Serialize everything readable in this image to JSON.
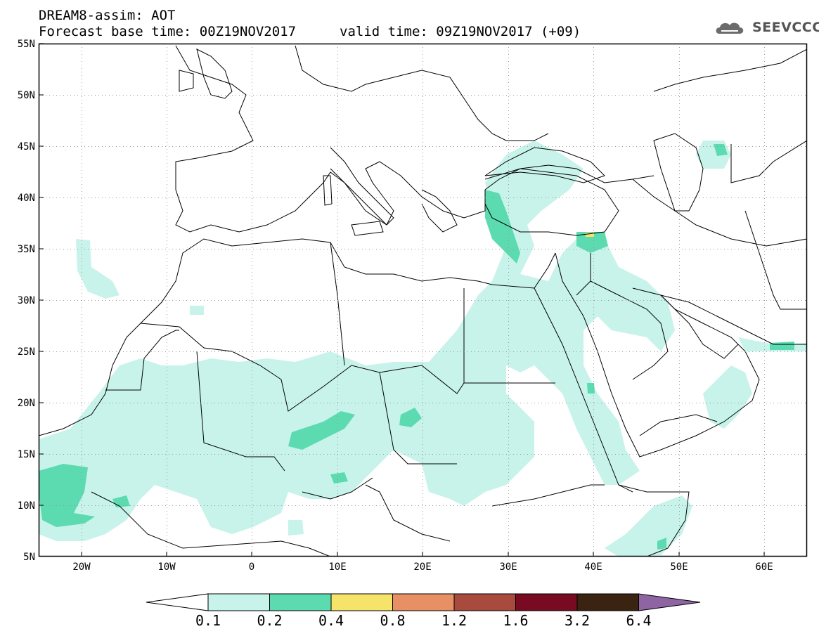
{
  "header": {
    "title": "DREAM8-assim: AOT",
    "base_time": "Forecast base time: 00Z19NOV2017",
    "valid_time": "valid time: 09Z19NOV2017 (+09)",
    "logo_text": "SEEVCCC"
  },
  "map": {
    "lat_labels": [
      "55N",
      "50N",
      "45N",
      "40N",
      "35N",
      "30N",
      "25N",
      "20N",
      "15N",
      "10N",
      "5N"
    ],
    "lon_labels": [
      "20W",
      "10W",
      "0",
      "10E",
      "20E",
      "30E",
      "40E",
      "50E",
      "60E"
    ],
    "lat_range": [
      5,
      55
    ],
    "lon_range": [
      -25,
      65
    ],
    "grid": "dotted"
  },
  "colorbar": {
    "levels": [
      "0.1",
      "0.2",
      "0.4",
      "0.8",
      "1.2",
      "1.6",
      "3.2",
      "6.4"
    ],
    "colors": [
      "#ffffff",
      "#c8f3ea",
      "#5cdbb1",
      "#f6e36a",
      "#e79066",
      "#a94a3e",
      "#780b21",
      "#3a2311",
      "#8e64a2"
    ]
  }
}
